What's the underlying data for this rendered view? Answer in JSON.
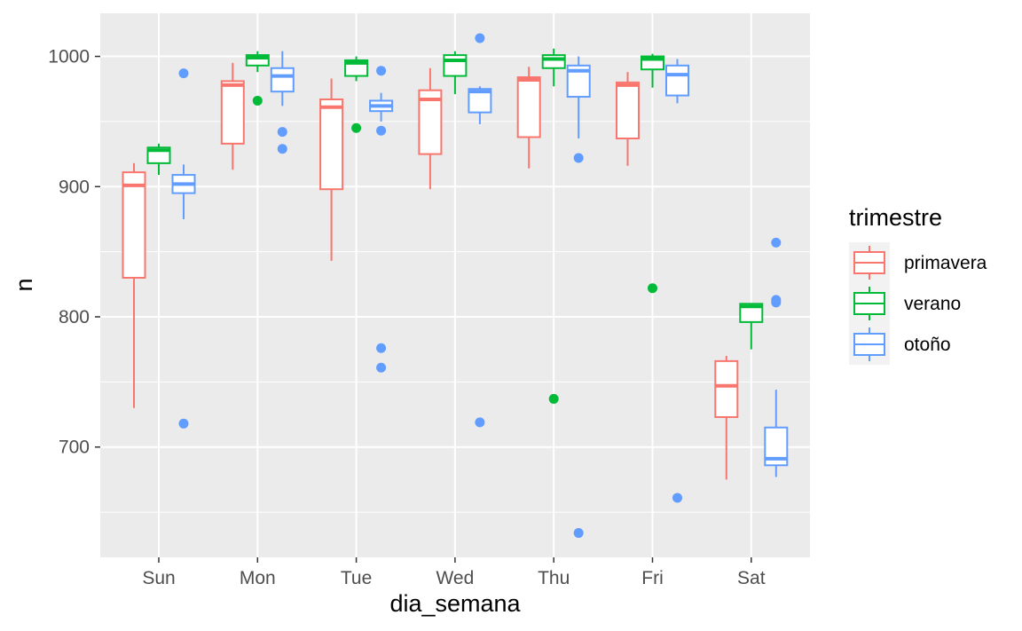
{
  "chart_data": {
    "type": "boxplot",
    "xlabel": "dia_semana",
    "ylabel": "n",
    "categories": [
      "Sun",
      "Mon",
      "Tue",
      "Wed",
      "Thu",
      "Fri",
      "Sat"
    ],
    "y_ticks": [
      700,
      800,
      900,
      1000
    ],
    "ylim": [
      617,
      1033
    ],
    "grid": true,
    "legend": {
      "title": "trimestre",
      "position": "right"
    },
    "series": [
      {
        "name": "primavera",
        "color": "#F8766D",
        "boxes": [
          {
            "category": "Sun",
            "min": 730,
            "q1": 830,
            "median": 901,
            "q3": 911,
            "max": 918,
            "outliers": []
          },
          {
            "category": "Mon",
            "min": 913,
            "q1": 933,
            "median": 978,
            "q3": 981,
            "max": 995,
            "outliers": []
          },
          {
            "category": "Tue",
            "min": 843,
            "q1": 898,
            "median": 961,
            "q3": 967,
            "max": 983,
            "outliers": []
          },
          {
            "category": "Wed",
            "min": 898,
            "q1": 925,
            "median": 967,
            "q3": 974,
            "max": 991,
            "outliers": []
          },
          {
            "category": "Thu",
            "min": 914,
            "q1": 938,
            "median": 982,
            "q3": 984,
            "max": 992,
            "outliers": []
          },
          {
            "category": "Fri",
            "min": 916,
            "q1": 937,
            "median": 978,
            "q3": 980,
            "max": 988,
            "outliers": []
          },
          {
            "category": "Sat",
            "min": 675,
            "q1": 723,
            "median": 747,
            "q3": 766,
            "max": 770,
            "outliers": []
          }
        ]
      },
      {
        "name": "verano",
        "color": "#00BA38",
        "boxes": [
          {
            "category": "Sun",
            "min": 909,
            "q1": 918,
            "median": 928,
            "q3": 930,
            "max": 933,
            "outliers": []
          },
          {
            "category": "Mon",
            "min": 988,
            "q1": 993,
            "median": 999,
            "q3": 1001,
            "max": 1004,
            "outliers": [
              966
            ]
          },
          {
            "category": "Tue",
            "min": 981,
            "q1": 985,
            "median": 995,
            "q3": 997,
            "max": 1000,
            "outliers": [
              945
            ]
          },
          {
            "category": "Wed",
            "min": 971,
            "q1": 985,
            "median": 997,
            "q3": 1001,
            "max": 1004,
            "outliers": []
          },
          {
            "category": "Thu",
            "min": 977,
            "q1": 991,
            "median": 998,
            "q3": 1001,
            "max": 1006,
            "outliers": [
              737
            ]
          },
          {
            "category": "Fri",
            "min": 976,
            "q1": 990,
            "median": 998,
            "q3": 1000,
            "max": 1002,
            "outliers": [
              822
            ]
          },
          {
            "category": "Sat",
            "min": 775,
            "q1": 796,
            "median": 808,
            "q3": 810,
            "max": 810,
            "outliers": []
          }
        ]
      },
      {
        "name": "otoño",
        "color": "#619CFF",
        "boxes": [
          {
            "category": "Sun",
            "min": 875,
            "q1": 895,
            "median": 902,
            "q3": 909,
            "max": 917,
            "outliers": [
              987,
              718
            ]
          },
          {
            "category": "Mon",
            "min": 962,
            "q1": 973,
            "median": 985,
            "q3": 991,
            "max": 1004,
            "outliers": [
              942,
              929
            ]
          },
          {
            "category": "Tue",
            "min": 950,
            "q1": 958,
            "median": 962,
            "q3": 966,
            "max": 972,
            "outliers": [
              989,
              943,
              776,
              761
            ]
          },
          {
            "category": "Wed",
            "min": 948,
            "q1": 957,
            "median": 973,
            "q3": 975,
            "max": 977,
            "outliers": [
              1014,
              719
            ]
          },
          {
            "category": "Thu",
            "min": 937,
            "q1": 969,
            "median": 989,
            "q3": 993,
            "max": 1000,
            "outliers": [
              922,
              634
            ]
          },
          {
            "category": "Fri",
            "min": 964,
            "q1": 970,
            "median": 986,
            "q3": 993,
            "max": 998,
            "outliers": [
              661
            ]
          },
          {
            "category": "Sat",
            "min": 677,
            "q1": 686,
            "median": 691,
            "q3": 715,
            "max": 744,
            "outliers": [
              857,
              813,
              811
            ]
          }
        ]
      }
    ]
  }
}
